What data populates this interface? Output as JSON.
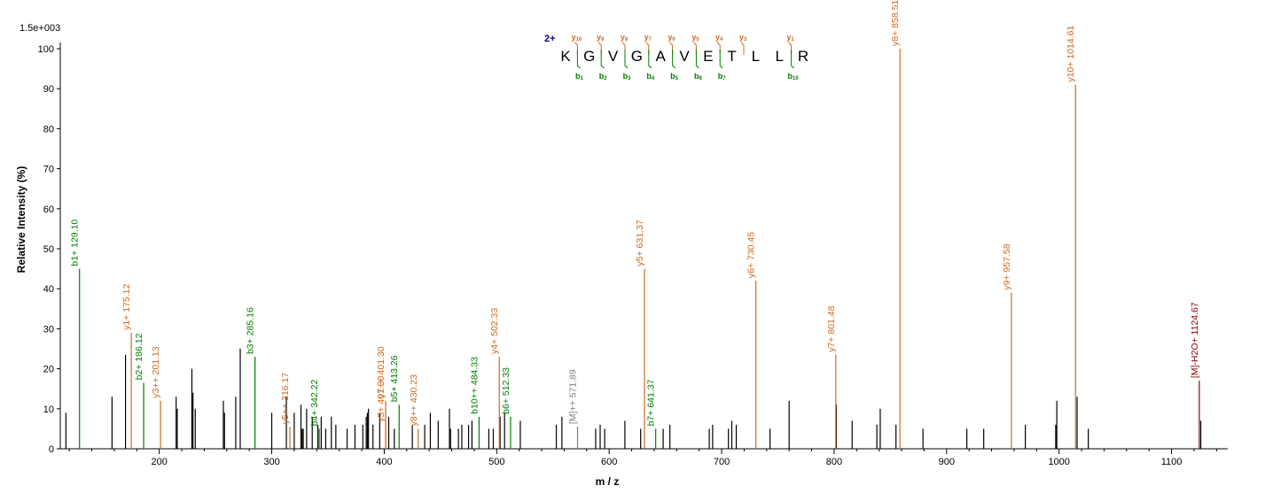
{
  "chart_data": {
    "type": "bar",
    "scale_label": "1.5e+003",
    "xlabel": "m / z",
    "ylabel": "Relative   Intensity (%)",
    "xlim": [
      112,
      1150
    ],
    "ylim": [
      0,
      100
    ],
    "x_ticks": [
      100,
      200,
      300,
      400,
      500,
      600,
      700,
      800,
      900,
      1000,
      1100
    ],
    "y_ticks": [
      0,
      10,
      20,
      30,
      40,
      50,
      60,
      70,
      80,
      90,
      100
    ],
    "colors": {
      "b": "#008000",
      "y": "#d2691e",
      "precursor": "#808080",
      "loss": "#8b0000",
      "unassigned": "#000000"
    },
    "annotated_peaks": [
      {
        "mz": 129.1,
        "intensity": 45,
        "ion": "b",
        "label": "b1+ 129.10"
      },
      {
        "mz": 175.12,
        "intensity": 29,
        "ion": "y",
        "label": "y1+ 175.12"
      },
      {
        "mz": 186.12,
        "intensity": 16.5,
        "ion": "b",
        "label": "b2+ 186.12"
      },
      {
        "mz": 201.13,
        "intensity": 12,
        "ion": "y",
        "label": "y3++ 201.13"
      },
      {
        "mz": 285.16,
        "intensity": 23,
        "ion": "b",
        "label": "b3+ 285.16"
      },
      {
        "mz": 316.17,
        "intensity": 5.5,
        "ion": "y",
        "label": "y5++ 316.17"
      },
      {
        "mz": 342.22,
        "intensity": 5,
        "ion": "b",
        "label": "b4+ 342.22"
      },
      {
        "mz": 401.3,
        "intensity": 6,
        "ion": "y",
        "label": "y3+ 401.30"
      },
      {
        "mz": 401.3,
        "intensity": 12,
        "ion": "y",
        "label": "y7++ 401.30"
      },
      {
        "mz": 413.26,
        "intensity": 11,
        "ion": "b",
        "label": "b5+ 413.26"
      },
      {
        "mz": 430.23,
        "intensity": 5,
        "ion": "y",
        "label": "y8++ 430.23"
      },
      {
        "mz": 484.33,
        "intensity": 8,
        "ion": "b",
        "label": "b10++ 484.33"
      },
      {
        "mz": 502.33,
        "intensity": 23,
        "ion": "y",
        "label": "y4+ 502.33"
      },
      {
        "mz": 512.33,
        "intensity": 8,
        "ion": "b",
        "label": "b6+ 512.33"
      },
      {
        "mz": 571.89,
        "intensity": 5.5,
        "ion": "precursor",
        "label": "[M]++ 571.89"
      },
      {
        "mz": 631.37,
        "intensity": 45,
        "ion": "y",
        "label": "y5+ 631.37"
      },
      {
        "mz": 641.37,
        "intensity": 5,
        "ion": "b",
        "label": "b7+ 641.37"
      },
      {
        "mz": 730.45,
        "intensity": 42,
        "ion": "y",
        "label": "y6+ 730.45"
      },
      {
        "mz": 801.48,
        "intensity": 23.5,
        "ion": "y",
        "label": "y7+ 801.48"
      },
      {
        "mz": 858.51,
        "intensity": 100,
        "ion": "y",
        "label": "y8+ 858.51"
      },
      {
        "mz": 957.58,
        "intensity": 39,
        "ion": "y",
        "label": "y9+ 957.58"
      },
      {
        "mz": 1014.61,
        "intensity": 91,
        "ion": "y",
        "label": "y10+ 1014.61"
      },
      {
        "mz": 1124.67,
        "intensity": 17,
        "ion": "loss",
        "label": "[M]-H2O+ 1124.67"
      }
    ],
    "unassigned_peaks": [
      [
        117,
        9
      ],
      [
        158,
        13
      ],
      [
        170,
        23.5
      ],
      [
        215,
        13
      ],
      [
        216,
        10
      ],
      [
        229,
        20
      ],
      [
        230,
        14
      ],
      [
        232,
        10
      ],
      [
        257,
        12
      ],
      [
        258,
        9
      ],
      [
        268,
        13
      ],
      [
        272,
        25
      ],
      [
        300,
        9
      ],
      [
        313,
        13
      ],
      [
        320,
        9
      ],
      [
        326,
        11
      ],
      [
        327,
        5
      ],
      [
        328,
        5
      ],
      [
        331,
        10
      ],
      [
        336,
        8
      ],
      [
        341,
        6
      ],
      [
        344,
        8
      ],
      [
        348,
        5
      ],
      [
        353,
        8
      ],
      [
        357,
        6
      ],
      [
        367,
        5
      ],
      [
        374,
        6
      ],
      [
        381,
        6
      ],
      [
        384,
        8
      ],
      [
        385,
        9
      ],
      [
        386,
        10
      ],
      [
        390,
        6
      ],
      [
        396,
        9
      ],
      [
        404,
        8
      ],
      [
        409,
        5
      ],
      [
        425,
        6
      ],
      [
        436,
        6
      ],
      [
        441,
        9
      ],
      [
        448,
        7
      ],
      [
        458,
        10
      ],
      [
        459,
        5
      ],
      [
        466,
        5
      ],
      [
        469,
        6
      ],
      [
        475,
        6
      ],
      [
        478,
        7
      ],
      [
        493,
        5
      ],
      [
        497,
        5
      ],
      [
        503,
        8
      ],
      [
        507,
        9
      ],
      [
        521,
        7
      ],
      [
        553,
        6
      ],
      [
        558,
        8
      ],
      [
        588,
        5
      ],
      [
        592,
        6
      ],
      [
        596,
        5
      ],
      [
        614,
        7
      ],
      [
        628,
        5
      ],
      [
        648,
        5
      ],
      [
        654,
        6
      ],
      [
        689,
        5
      ],
      [
        692,
        6
      ],
      [
        706,
        5
      ],
      [
        709,
        7
      ],
      [
        713,
        6
      ],
      [
        743,
        5
      ],
      [
        760,
        12
      ],
      [
        802,
        11
      ],
      [
        816,
        7
      ],
      [
        838,
        6
      ],
      [
        841,
        10
      ],
      [
        855,
        6
      ],
      [
        879,
        5
      ],
      [
        918,
        5
      ],
      [
        933,
        5
      ],
      [
        970,
        6
      ],
      [
        997,
        6
      ],
      [
        998,
        12
      ],
      [
        1016,
        13
      ],
      [
        1026,
        5
      ],
      [
        1126,
        7
      ]
    ],
    "sequence": {
      "charge": "2+",
      "residues": [
        "K",
        "G",
        "V",
        "G",
        "A",
        "V",
        "E",
        "T",
        "L",
        "L",
        "R"
      ],
      "y_ions": [
        {
          "after": 0,
          "name": "y",
          "sub": "10"
        },
        {
          "after": 1,
          "name": "y",
          "sub": "9"
        },
        {
          "after": 2,
          "name": "y",
          "sub": "8"
        },
        {
          "after": 3,
          "name": "y",
          "sub": "7"
        },
        {
          "after": 4,
          "name": "y",
          "sub": "6"
        },
        {
          "after": 5,
          "name": "y",
          "sub": "5"
        },
        {
          "after": 6,
          "name": "y",
          "sub": "4"
        },
        {
          "after": 7,
          "name": "y",
          "sub": "3"
        },
        {
          "after": 9,
          "name": "y",
          "sub": "1"
        }
      ],
      "b_ions": [
        {
          "after": 0,
          "name": "b",
          "sub": "1"
        },
        {
          "after": 1,
          "name": "b",
          "sub": "2"
        },
        {
          "after": 2,
          "name": "b",
          "sub": "3"
        },
        {
          "after": 3,
          "name": "b",
          "sub": "4"
        },
        {
          "after": 4,
          "name": "b",
          "sub": "5"
        },
        {
          "after": 5,
          "name": "b",
          "sub": "6"
        },
        {
          "after": 6,
          "name": "b",
          "sub": "7"
        },
        {
          "after": 9,
          "name": "b",
          "sub": "10"
        }
      ]
    }
  }
}
